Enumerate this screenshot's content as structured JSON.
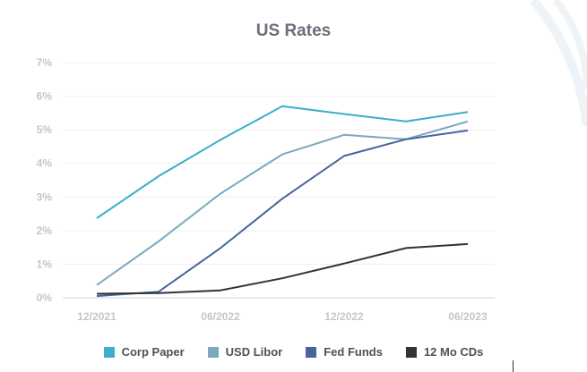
{
  "chart_data": {
    "type": "line",
    "title": "US Rates",
    "xlabel": "",
    "ylabel": "",
    "ylim": [
      0,
      7
    ],
    "yticks": [
      "0%",
      "1%",
      "2%",
      "3%",
      "4%",
      "5%",
      "6%",
      "7%"
    ],
    "x": [
      "12/2021",
      "03/2022",
      "06/2022",
      "09/2022",
      "12/2022",
      "03/2023",
      "06/2023"
    ],
    "xtick_labels": [
      "12/2021",
      "06/2022",
      "12/2022",
      "06/2023"
    ],
    "grid": true,
    "legend_position": "bottom",
    "series": [
      {
        "name": "Corp Paper",
        "color": "#3aaecc",
        "values": [
          2.37,
          3.62,
          4.7,
          5.7,
          5.47,
          5.25,
          5.53
        ]
      },
      {
        "name": "USD Libor",
        "color": "#7ba8bd",
        "values": [
          0.38,
          1.68,
          3.1,
          4.27,
          4.85,
          4.72,
          5.25
        ]
      },
      {
        "name": "Fed Funds",
        "color": "#45659c",
        "values": [
          0.05,
          0.18,
          1.48,
          2.95,
          4.22,
          4.72,
          4.98
        ]
      },
      {
        "name": "12 Mo CDs",
        "color": "#333333",
        "values": [
          0.12,
          0.14,
          0.22,
          0.58,
          1.02,
          1.48,
          1.6
        ]
      }
    ]
  }
}
